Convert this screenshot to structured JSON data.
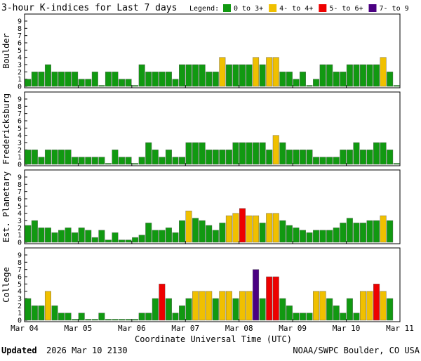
{
  "title": "3-hour K-indices for Last 7 days",
  "legend": {
    "title": "Legend:",
    "items": [
      {
        "label": "0 to 3+",
        "color": "#119911",
        "min": 0
      },
      {
        "label": "4- to 4+",
        "color": "#f0c000",
        "min": 3.67
      },
      {
        "label": "5- to 6+",
        "color": "#ee0000",
        "min": 4.67
      },
      {
        "label": "7- to 9",
        "color": "#4b0082",
        "min": 6.67
      }
    ]
  },
  "xlabel": "Coordinate Universal Time (UTC)",
  "footer": {
    "updated_label": "Updated",
    "updated_time": "2026 Mar 10 2130",
    "source": "NOAA/SWPC Boulder, CO USA"
  },
  "chart_data": [
    {
      "type": "bar",
      "ylabel": "Boulder",
      "xlim": [
        0,
        56
      ],
      "ylim": [
        0,
        9
      ],
      "yticks": [
        0,
        1,
        2,
        3,
        4,
        5,
        6,
        7,
        8,
        9
      ],
      "xticks": [
        {
          "value": 0,
          "label": "Mar 04"
        },
        {
          "value": 8,
          "label": "Mar 05"
        },
        {
          "value": 16,
          "label": "Mar 06"
        },
        {
          "value": 24,
          "label": "Mar 07"
        },
        {
          "value": 32,
          "label": "Mar 08"
        },
        {
          "value": 40,
          "label": "Mar 09"
        },
        {
          "value": 48,
          "label": "Mar 10"
        },
        {
          "value": 56,
          "label": "Mar 11"
        }
      ],
      "values": [
        1,
        2,
        2,
        3,
        2,
        2,
        2,
        2,
        1,
        1,
        2,
        0,
        2,
        2,
        1,
        1,
        0,
        3,
        2,
        2,
        2,
        2,
        1,
        3,
        3,
        3,
        3,
        2,
        2,
        4,
        3,
        3,
        3,
        3,
        4,
        3,
        4,
        4,
        2,
        2,
        1,
        2,
        0,
        1,
        3,
        3,
        2,
        2,
        3,
        3,
        3,
        3,
        3,
        4,
        2,
        0
      ]
    },
    {
      "type": "bar",
      "ylabel": "Fredericksburg",
      "xlim": [
        0,
        56
      ],
      "ylim": [
        0,
        9
      ],
      "yticks": [
        0,
        1,
        2,
        3,
        4,
        5,
        6,
        7,
        8,
        9
      ],
      "values": [
        2,
        2,
        1,
        2,
        2,
        2,
        2,
        1,
        1,
        1,
        1,
        1,
        0,
        2,
        1,
        1,
        0,
        1,
        3,
        2,
        1,
        2,
        1,
        1,
        3,
        3,
        3,
        2,
        2,
        2,
        2,
        3,
        3,
        3,
        3,
        3,
        2,
        4,
        3,
        2,
        2,
        2,
        2,
        1,
        1,
        1,
        1,
        2,
        2,
        3,
        2,
        2,
        3,
        3,
        2,
        0
      ]
    },
    {
      "type": "bar",
      "ylabel": "Est. Planetary",
      "xlim": [
        0,
        56
      ],
      "ylim": [
        0,
        9
      ],
      "yticks": [
        0,
        1,
        2,
        3,
        4,
        5,
        6,
        7,
        8,
        9
      ],
      "values": [
        2.33,
        3,
        2,
        2,
        1.33,
        1.67,
        2,
        1.33,
        2,
        1.67,
        0.67,
        1.67,
        0.33,
        1.33,
        0.33,
        0.33,
        0.67,
        1,
        2.67,
        1.67,
        1.67,
        2,
        1.33,
        3,
        4.33,
        3.33,
        3,
        2.33,
        1.67,
        2.67,
        3.67,
        4,
        4.67,
        3.67,
        3.67,
        2.67,
        4,
        4,
        3,
        2.33,
        2,
        1.67,
        1.33,
        1.67,
        1.67,
        1.67,
        2,
        2.67,
        3.33,
        2.67,
        2.67,
        3,
        3,
        3.67,
        3,
        null
      ]
    },
    {
      "type": "bar",
      "ylabel": "College",
      "xlim": [
        0,
        56
      ],
      "ylim": [
        0,
        9
      ],
      "yticks": [
        0,
        1,
        2,
        3,
        4,
        5,
        6,
        7,
        8,
        9
      ],
      "values": [
        3,
        2,
        2,
        4,
        2,
        1,
        1,
        0,
        1,
        0,
        0,
        1,
        0,
        0,
        0,
        0,
        0,
        1,
        1,
        3,
        5,
        3,
        1,
        2,
        3,
        4,
        4,
        4,
        3,
        4,
        4,
        3,
        4,
        4,
        7,
        3,
        6,
        6,
        3,
        2,
        1,
        1,
        1,
        4,
        4,
        3,
        2,
        1,
        3,
        1,
        4,
        4,
        5,
        4,
        3,
        null
      ]
    }
  ]
}
